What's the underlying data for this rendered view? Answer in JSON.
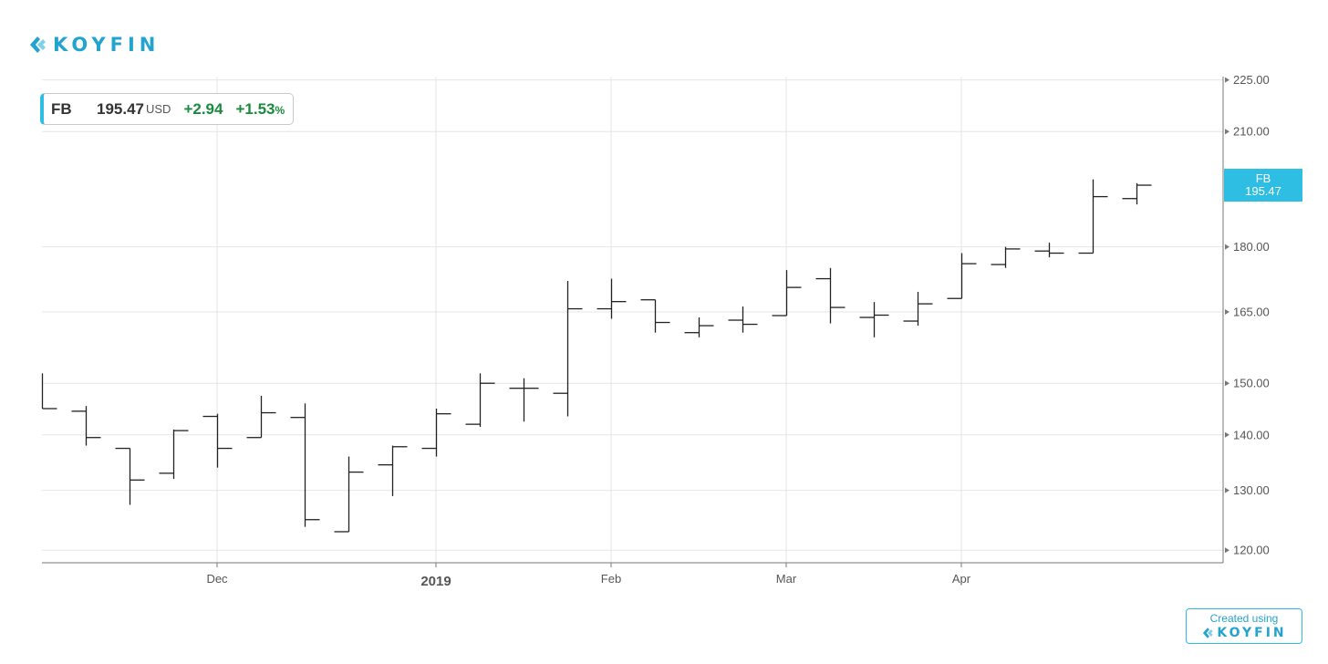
{
  "brand": {
    "name": "KOYFIN",
    "accent": "#25a3cf"
  },
  "quote": {
    "ticker": "FB",
    "price": "195.47",
    "currency": "USD",
    "change": "+2.94",
    "change_pct": "+1.53",
    "pct_symbol": "%",
    "up_color": "#1a8a3d"
  },
  "price_tag": {
    "ticker": "FB",
    "price": "195.47",
    "color": "#2ebde3"
  },
  "credit": {
    "line1": "Created using",
    "logo": "KOYFIN"
  },
  "chart_data": {
    "type": "ohlc",
    "series": [
      {
        "name": "FB"
      }
    ],
    "x_labels": [
      {
        "label": "Dec",
        "bar_index": 4
      },
      {
        "label": "2019",
        "bar_index": 9,
        "bold": true
      },
      {
        "label": "Feb",
        "bar_index": 13
      },
      {
        "label": "Mar",
        "bar_index": 17
      },
      {
        "label": "Apr",
        "bar_index": 21
      }
    ],
    "y_ticks": [
      "120.00",
      "130.00",
      "140.00",
      "150.00",
      "165.00",
      "180.00",
      "210.00",
      "225.00"
    ],
    "y_scale": "log",
    "ylim": [
      118,
      226
    ],
    "grid": true,
    "bars": [
      {
        "o": 145.0,
        "h": 152.0,
        "l": 145.0,
        "c": 145.0
      },
      {
        "o": 144.5,
        "h": 145.5,
        "l": 138.0,
        "c": 139.5
      },
      {
        "o": 137.5,
        "h": 137.5,
        "l": 127.5,
        "c": 131.8
      },
      {
        "o": 133.0,
        "h": 141.0,
        "l": 132.0,
        "c": 140.8
      },
      {
        "o": 143.5,
        "h": 144.0,
        "l": 134.0,
        "c": 137.5
      },
      {
        "o": 139.5,
        "h": 147.5,
        "l": 139.5,
        "c": 144.2
      },
      {
        "o": 143.3,
        "h": 146.0,
        "l": 123.8,
        "c": 125.0
      },
      {
        "o": 123.0,
        "h": 136.0,
        "l": 123.0,
        "c": 133.2
      },
      {
        "o": 134.5,
        "h": 138.0,
        "l": 129.0,
        "c": 137.8
      },
      {
        "o": 137.5,
        "h": 145.0,
        "l": 136.0,
        "c": 144.0
      },
      {
        "o": 142.0,
        "h": 152.0,
        "l": 141.5,
        "c": 150.0
      },
      {
        "o": 149.0,
        "h": 151.0,
        "l": 142.5,
        "c": 149.0
      },
      {
        "o": 148.0,
        "h": 172.0,
        "l": 143.5,
        "c": 165.7
      },
      {
        "o": 165.7,
        "h": 172.5,
        "l": 163.5,
        "c": 167.3
      },
      {
        "o": 167.7,
        "h": 167.7,
        "l": 160.5,
        "c": 162.7
      },
      {
        "o": 160.5,
        "h": 163.8,
        "l": 159.5,
        "c": 162.0
      },
      {
        "o": 163.2,
        "h": 166.2,
        "l": 160.5,
        "c": 162.3
      },
      {
        "o": 164.2,
        "h": 174.5,
        "l": 164.2,
        "c": 170.5
      },
      {
        "o": 172.5,
        "h": 175.0,
        "l": 162.5,
        "c": 166.0
      },
      {
        "o": 163.8,
        "h": 167.2,
        "l": 159.5,
        "c": 164.3
      },
      {
        "o": 163.0,
        "h": 169.5,
        "l": 162.0,
        "c": 166.8
      },
      {
        "o": 168.0,
        "h": 178.5,
        "l": 168.0,
        "c": 176.0
      },
      {
        "o": 175.8,
        "h": 180.0,
        "l": 175.0,
        "c": 179.5
      },
      {
        "o": 179.0,
        "h": 181.0,
        "l": 177.5,
        "c": 178.5
      },
      {
        "o": 178.5,
        "h": 197.0,
        "l": 178.5,
        "c": 192.5
      },
      {
        "o": 192.0,
        "h": 196.0,
        "l": 190.5,
        "c": 195.47
      }
    ]
  }
}
